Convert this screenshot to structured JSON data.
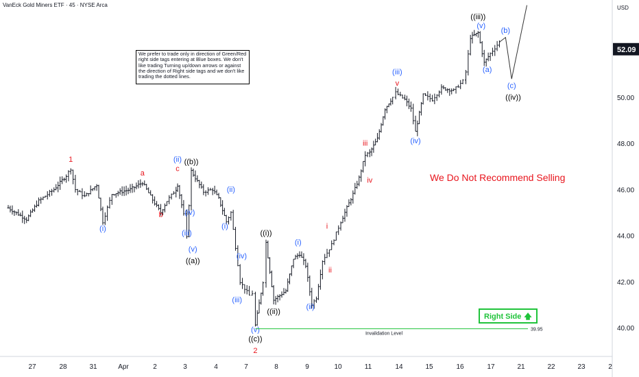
{
  "header": {
    "title": "VanEck Gold Miners ETF · 45 · NYSE Arca"
  },
  "currency": "USD",
  "price_tag": {
    "label": "52.09",
    "value": 52.09,
    "color": "#131722"
  },
  "note": "We prefer to trade only in direction of Green/Red right side tags entering at Blue boxes. We don't like trading Turning up/down arrows or against the direction of Right side tags and we don't like trading the dotted lines.",
  "warning": "We Do Not Recommend Selling",
  "right_side_tag": {
    "label": "Right Side",
    "arrow": "up-arrow-icon",
    "color": "#1fc33a"
  },
  "invalidation": {
    "label": "Invalidation Level",
    "value_label": "39.95",
    "value": 39.95,
    "color": "#1fc33a"
  },
  "colors": {
    "candles": "#131722",
    "red_label": "#e8141c",
    "blue_label": "#2962ff",
    "black_label": "#000000"
  },
  "chart_data": {
    "type": "candlestick",
    "title": "VanEck Gold Miners ETF · 45 · NYSE Arca",
    "grid": false,
    "x_ticks": [
      "27",
      "28",
      "31",
      "Apr",
      "2",
      "3",
      "4",
      "7",
      "8",
      "9",
      "10",
      "11",
      "14",
      "15",
      "16",
      "17",
      "21",
      "22",
      "23",
      "2"
    ],
    "y_ticks": [
      40.0,
      42.0,
      44.0,
      46.0,
      48.0,
      50.0
    ],
    "ylim": [
      38.7,
      53.6
    ],
    "price_path": [
      [
        0,
        45.2
      ],
      [
        0.6,
        44.7
      ],
      [
        1.0,
        45.5
      ],
      [
        1.5,
        46.0
      ],
      [
        1.9,
        46.6
      ],
      [
        2.05,
        46.9
      ],
      [
        2.2,
        46.0
      ],
      [
        2.5,
        45.7
      ],
      [
        2.9,
        46.2
      ],
      [
        3.1,
        44.6
      ],
      [
        3.4,
        45.8
      ],
      [
        4.0,
        46.0
      ],
      [
        4.4,
        46.3
      ],
      [
        4.8,
        45.4
      ],
      [
        5.0,
        45.0
      ],
      [
        5.2,
        45.5
      ],
      [
        5.5,
        46.0
      ],
      [
        5.55,
        46.2
      ],
      [
        5.75,
        44.9
      ],
      [
        5.85,
        43.9
      ],
      [
        6.0,
        46.8
      ],
      [
        6.4,
        45.9
      ],
      [
        6.7,
        46.0
      ],
      [
        6.9,
        45.6
      ],
      [
        7.15,
        44.6
      ],
      [
        7.3,
        45.0
      ],
      [
        7.6,
        42.0
      ],
      [
        7.9,
        41.4
      ],
      [
        8.0,
        41.5
      ],
      [
        8.1,
        40.1
      ],
      [
        8.35,
        42.0
      ],
      [
        8.45,
        43.7
      ],
      [
        8.7,
        41.2
      ],
      [
        9.1,
        41.6
      ],
      [
        9.35,
        43.0
      ],
      [
        9.55,
        43.2
      ],
      [
        9.75,
        42.7
      ],
      [
        9.95,
        41.0
      ],
      [
        10.1,
        41.3
      ],
      [
        10.3,
        42.9
      ],
      [
        10.6,
        43.6
      ],
      [
        10.9,
        44.6
      ],
      [
        11.3,
        45.8
      ],
      [
        11.5,
        46.5
      ],
      [
        11.7,
        47.5
      ],
      [
        11.85,
        47.6
      ],
      [
        12.1,
        48.2
      ],
      [
        12.35,
        49.5
      ],
      [
        12.6,
        50.0
      ],
      [
        12.7,
        50.2
      ],
      [
        13.0,
        49.9
      ],
      [
        13.2,
        49.5
      ],
      [
        13.35,
        48.5
      ],
      [
        13.6,
        50.1
      ],
      [
        13.9,
        49.9
      ],
      [
        14.2,
        50.4
      ],
      [
        14.6,
        50.3
      ],
      [
        14.9,
        50.7
      ],
      [
        15.0,
        51.1
      ],
      [
        15.15,
        52.6
      ],
      [
        15.4,
        52.8
      ],
      [
        15.6,
        51.5
      ],
      [
        15.8,
        51.9
      ],
      [
        16.1,
        52.4
      ]
    ],
    "projection": [
      [
        16.1,
        52.4
      ],
      [
        16.3,
        52.6
      ],
      [
        16.5,
        50.8
      ],
      [
        17.0,
        54.0
      ]
    ],
    "wave_labels": [
      {
        "text": "1",
        "x": 2.05,
        "price": 47.2,
        "color": "red"
      },
      {
        "text": "(i)",
        "x": 3.1,
        "price": 44.2,
        "color": "blue"
      },
      {
        "text": "a",
        "x": 4.4,
        "price": 46.6,
        "color": "red"
      },
      {
        "text": "b",
        "x": 5.0,
        "price": 44.8,
        "color": "red"
      },
      {
        "text": "(ii)",
        "x": 5.55,
        "price": 47.2,
        "color": "blue"
      },
      {
        "text": "c",
        "x": 5.55,
        "price": 46.8,
        "color": "red"
      },
      {
        "text": "((b))",
        "x": 6.0,
        "price": 47.1,
        "color": "black"
      },
      {
        "text": "(iv)",
        "x": 5.95,
        "price": 44.9,
        "color": "blue"
      },
      {
        "text": "(iii)",
        "x": 5.85,
        "price": 44.0,
        "color": "blue"
      },
      {
        "text": "(v)",
        "x": 6.05,
        "price": 43.3,
        "color": "blue"
      },
      {
        "text": "((a))",
        "x": 6.05,
        "price": 42.8,
        "color": "black"
      },
      {
        "text": "(ii)",
        "x": 7.3,
        "price": 45.9,
        "color": "blue"
      },
      {
        "text": "(i)",
        "x": 7.1,
        "price": 44.3,
        "color": "blue"
      },
      {
        "text": "(iv)",
        "x": 7.65,
        "price": 43.0,
        "color": "blue"
      },
      {
        "text": "(iii)",
        "x": 7.5,
        "price": 41.1,
        "color": "blue"
      },
      {
        "text": "((i))",
        "x": 8.45,
        "price": 44.0,
        "color": "black"
      },
      {
        "text": "((ii))",
        "x": 8.7,
        "price": 40.6,
        "color": "black"
      },
      {
        "text": "(v)",
        "x": 8.1,
        "price": 39.8,
        "color": "blue"
      },
      {
        "text": "((c))",
        "x": 8.1,
        "price": 39.4,
        "color": "black"
      },
      {
        "text": "2",
        "x": 8.1,
        "price": 38.9,
        "color": "red"
      },
      {
        "text": "(i)",
        "x": 9.5,
        "price": 43.6,
        "color": "blue"
      },
      {
        "text": "(ii)",
        "x": 9.9,
        "price": 40.8,
        "color": "blue"
      },
      {
        "text": "i",
        "x": 10.45,
        "price": 44.3,
        "color": "red"
      },
      {
        "text": "ii",
        "x": 10.55,
        "price": 42.4,
        "color": "red"
      },
      {
        "text": "iii",
        "x": 11.7,
        "price": 47.9,
        "color": "red"
      },
      {
        "text": "iv",
        "x": 11.85,
        "price": 46.3,
        "color": "red"
      },
      {
        "text": "(iii)",
        "x": 12.75,
        "price": 51.0,
        "color": "blue"
      },
      {
        "text": "v",
        "x": 12.75,
        "price": 50.5,
        "color": "red"
      },
      {
        "text": "(iv)",
        "x": 13.35,
        "price": 48.0,
        "color": "blue"
      },
      {
        "text": "((iii))",
        "x": 15.4,
        "price": 53.4,
        "color": "black"
      },
      {
        "text": "(v)",
        "x": 15.5,
        "price": 53.0,
        "color": "blue"
      },
      {
        "text": "(b)",
        "x": 16.3,
        "price": 52.8,
        "color": "blue"
      },
      {
        "text": "(a)",
        "x": 15.7,
        "price": 51.1,
        "color": "blue"
      },
      {
        "text": "(c)",
        "x": 16.5,
        "price": 50.4,
        "color": "blue"
      },
      {
        "text": "((iv))",
        "x": 16.55,
        "price": 49.9,
        "color": "black"
      }
    ]
  }
}
